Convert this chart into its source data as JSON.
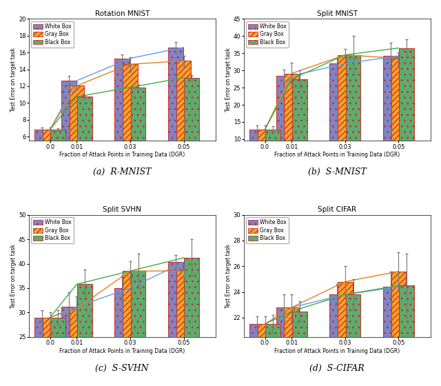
{
  "x_labels": [
    "0.0",
    "0.01",
    "0.03",
    "0.05"
  ],
  "x_positions": [
    0.0,
    0.01,
    0.03,
    0.05
  ],
  "rmnist": {
    "title": "Rotation MNIST",
    "ylabel": "Test Error on target task",
    "xlabel": "Fraction of Attack Points in Training Data (DGR)",
    "ylim": [
      5.5,
      20.0
    ],
    "yticks": [
      6,
      8,
      10,
      12,
      14,
      16,
      18,
      20
    ],
    "white": {
      "means": [
        6.85,
        12.65,
        15.3,
        16.6
      ],
      "errs": [
        0.2,
        0.55,
        0.45,
        0.6
      ]
    },
    "gray": {
      "means": [
        6.85,
        12.05,
        14.6,
        15.0
      ],
      "errs": [
        0.2,
        0.45,
        0.85,
        0.6
      ]
    },
    "black": {
      "means": [
        6.85,
        10.75,
        11.85,
        13.0
      ],
      "errs": [
        0.15,
        0.2,
        0.3,
        0.28
      ]
    }
  },
  "smnist": {
    "title": "Split MNIST",
    "ylabel": "Test Error on target task",
    "xlabel": "Fraction of Attack Points in Training Data (DGR)",
    "ylim": [
      9.5,
      45.0
    ],
    "yticks": [
      10,
      15,
      20,
      25,
      30,
      35,
      40,
      45
    ],
    "white": {
      "means": [
        12.8,
        28.4,
        32.0,
        34.2
      ],
      "errs": [
        1.2,
        1.8,
        1.5,
        3.8
      ]
    },
    "gray": {
      "means": [
        12.8,
        29.1,
        34.5,
        33.5
      ],
      "errs": [
        1.2,
        3.2,
        1.8,
        1.8
      ]
    },
    "black": {
      "means": [
        12.8,
        27.5,
        34.5,
        36.5
      ],
      "errs": [
        1.0,
        2.5,
        5.5,
        2.5
      ]
    }
  },
  "ssvhn": {
    "title": "Split SVHN",
    "ylabel": "Test Error on target task",
    "xlabel": "Fraction of Attack Points in Training Data (DGR)",
    "ylim": [
      25.0,
      50.0
    ],
    "yticks": [
      25,
      30,
      35,
      40,
      45,
      50
    ],
    "white": {
      "means": [
        29.0,
        31.2,
        35.0,
        40.3
      ],
      "errs": [
        1.5,
        3.0,
        2.5,
        1.5
      ]
    },
    "gray": {
      "means": [
        29.0,
        30.8,
        38.5,
        38.5
      ],
      "errs": [
        1.0,
        2.5,
        2.0,
        1.5
      ]
    },
    "black": {
      "means": [
        29.0,
        35.8,
        38.5,
        41.2
      ],
      "errs": [
        1.5,
        3.0,
        3.5,
        3.8
      ]
    }
  },
  "scifar": {
    "title": "Split CIFAR",
    "ylabel": "Test Error on target task",
    "xlabel": "Fraction of Attack Points in Training Data (DGR)",
    "ylim": [
      20.5,
      30.0
    ],
    "yticks": [
      22,
      24,
      26,
      28,
      30
    ],
    "white": {
      "means": [
        21.5,
        22.8,
        23.8,
        24.4
      ],
      "errs": [
        0.6,
        1.0,
        0.8,
        1.2
      ]
    },
    "gray": {
      "means": [
        21.5,
        22.8,
        24.8,
        25.6
      ],
      "errs": [
        0.6,
        1.0,
        1.2,
        1.5
      ]
    },
    "black": {
      "means": [
        21.5,
        22.5,
        23.8,
        24.5
      ],
      "errs": [
        0.7,
        0.8,
        1.2,
        2.5
      ]
    }
  },
  "white_bar_color": "#7B86C8",
  "gray_bar_color": "#F5A623",
  "black_bar_color": "#5BAD6F",
  "white_line_color": "#6699EE",
  "gray_line_color": "#E08020",
  "black_line_color": "#44AA44",
  "bar_edge_color": "#CC3333",
  "err_color": "#888888",
  "bg_color": "#F0F0F0",
  "legend_labels": [
    "White Box",
    "Gray Box",
    "Black Box"
  ],
  "captions": [
    "(a)  R-MNIST",
    "(b)  S-MNIST",
    "(c)  S-SVHN",
    "(d)  S-CIFAR"
  ]
}
